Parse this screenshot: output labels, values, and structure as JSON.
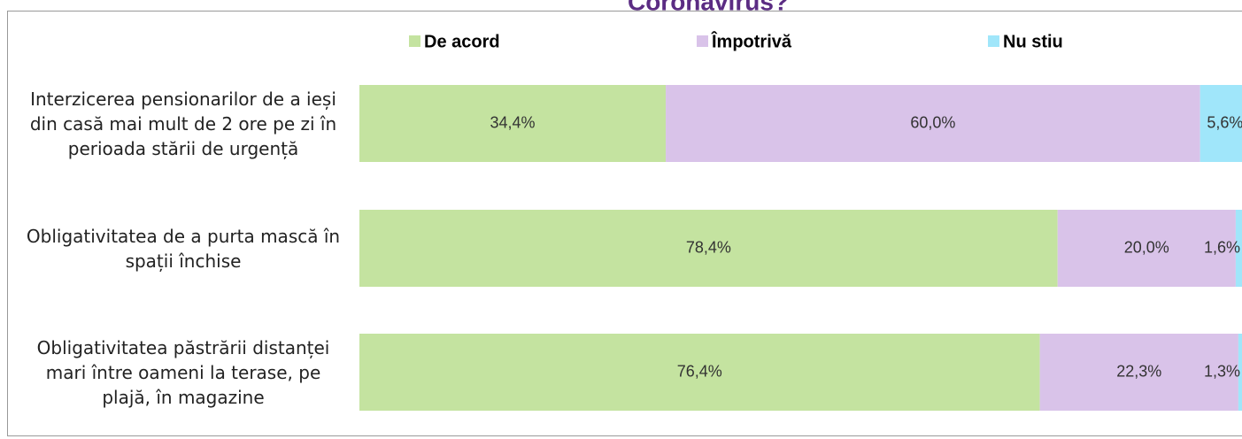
{
  "chart_data": {
    "type": "stacked_bar_horizontal",
    "title": "Coronavirus?",
    "categories": [
      "Interzicerea pensionarilor de a ieși din casă mai mult de 2 ore pe zi în perioada stării de urgență",
      "Obligativitatea de a purta mască în spații închise",
      "Obligativitatea păstrării distanței mari între oameni la terase, pe plajă, în magazine"
    ],
    "series": [
      {
        "name": "De acord",
        "color": "#c4e3a0",
        "values": [
          34.4,
          78.4,
          76.4
        ],
        "value_labels": [
          "34,4%",
          "78,4%",
          "76,4%"
        ]
      },
      {
        "name": "Împotrivă",
        "color": "#d9c3e9",
        "values": [
          60.0,
          20.0,
          22.3
        ],
        "value_labels": [
          "60,0%",
          "20,0%",
          "22,3%"
        ]
      },
      {
        "name": "Nu stiu",
        "color": "#a0e6fa",
        "values": [
          5.6,
          1.6,
          1.3
        ],
        "value_labels": [
          "5,6%",
          "1,6%",
          "1,3%"
        ]
      }
    ],
    "xlim": [
      0,
      100
    ],
    "legend": "top"
  }
}
